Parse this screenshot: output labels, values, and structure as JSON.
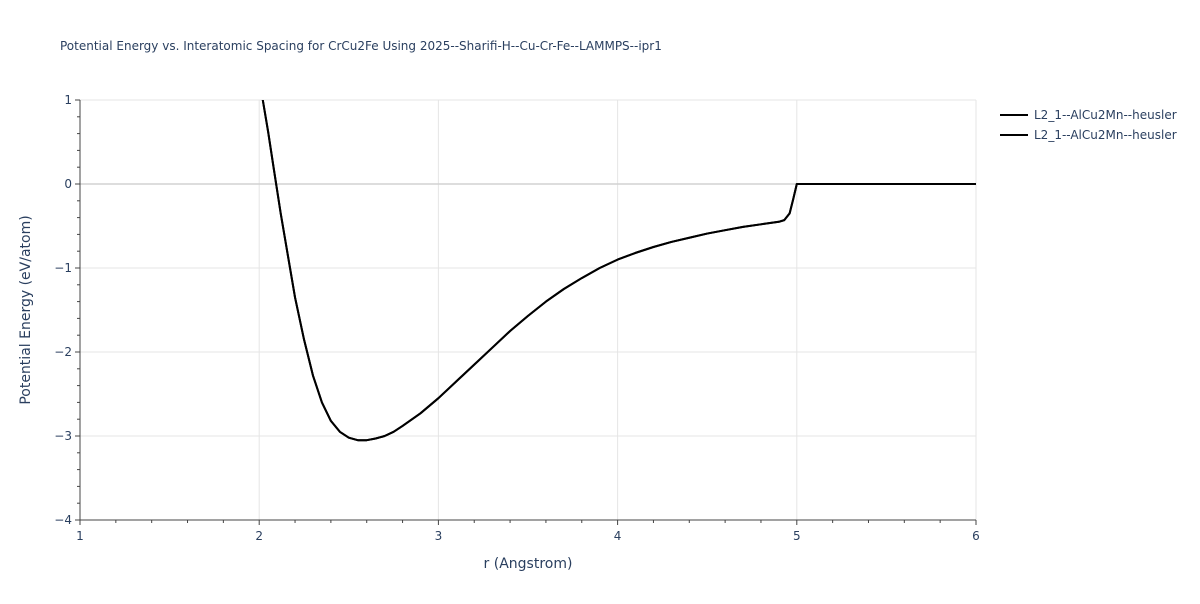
{
  "chart_data": {
    "type": "line",
    "title": "Potential Energy vs. Interatomic Spacing for CrCu2Fe Using 2025--Sharifi-H--Cu-Cr-Fe--LAMMPS--ipr1",
    "xlabel": "r (Angstrom)",
    "ylabel": "Potential Energy (eV/atom)",
    "xlim": [
      1,
      6
    ],
    "ylim": [
      -4,
      1
    ],
    "x_ticks": [
      1,
      2,
      3,
      4,
      5,
      6
    ],
    "x_tick_labels": [
      "1",
      "2",
      "3",
      "4",
      "5",
      "6"
    ],
    "y_ticks": [
      -4,
      -3,
      -2,
      -1,
      0,
      1
    ],
    "y_tick_labels": [
      "−4",
      "−3",
      "−2",
      "−1",
      "0",
      "1"
    ],
    "grid": true,
    "zero_line": true,
    "legend_position": "top-right",
    "series": [
      {
        "name": "L2_1--AlCu2Mn--heusler",
        "color": "#000000",
        "x": [
          2.02,
          2.05,
          2.08,
          2.12,
          2.16,
          2.2,
          2.25,
          2.3,
          2.35,
          2.4,
          2.45,
          2.5,
          2.55,
          2.6,
          2.65,
          2.7,
          2.75,
          2.8,
          2.9,
          3.0,
          3.1,
          3.2,
          3.3,
          3.4,
          3.5,
          3.6,
          3.7,
          3.8,
          3.9,
          4.0,
          4.1,
          4.2,
          4.3,
          4.4,
          4.5,
          4.6,
          4.7,
          4.8,
          4.9,
          4.93,
          4.96,
          4.98,
          5.0,
          5.2,
          5.5,
          6.0
        ],
        "y": [
          1.0,
          0.62,
          0.2,
          -0.35,
          -0.85,
          -1.35,
          -1.85,
          -2.28,
          -2.6,
          -2.82,
          -2.95,
          -3.02,
          -3.05,
          -3.05,
          -3.03,
          -3.0,
          -2.95,
          -2.88,
          -2.73,
          -2.55,
          -2.35,
          -2.15,
          -1.95,
          -1.75,
          -1.57,
          -1.4,
          -1.25,
          -1.12,
          -1.0,
          -0.9,
          -0.82,
          -0.75,
          -0.69,
          -0.64,
          -0.59,
          -0.55,
          -0.51,
          -0.48,
          -0.45,
          -0.43,
          -0.35,
          -0.18,
          0.0,
          0.0,
          0.0,
          0.0
        ]
      },
      {
        "name": "L2_1--AlCu2Mn--heusler",
        "color": "#000000",
        "x": [
          2.02,
          2.05,
          2.08,
          2.12,
          2.16,
          2.2,
          2.25,
          2.3,
          2.35,
          2.4,
          2.45,
          2.5,
          2.55,
          2.6,
          2.65,
          2.7,
          2.75,
          2.8,
          2.9,
          3.0,
          3.1,
          3.2,
          3.3,
          3.4,
          3.5,
          3.6,
          3.7,
          3.8,
          3.9,
          4.0,
          4.1,
          4.2,
          4.3,
          4.4,
          4.5,
          4.6,
          4.7,
          4.8,
          4.9,
          4.93,
          4.96,
          4.98,
          5.0,
          5.2,
          5.5,
          6.0
        ],
        "y": [
          1.0,
          0.62,
          0.2,
          -0.35,
          -0.85,
          -1.35,
          -1.85,
          -2.28,
          -2.6,
          -2.82,
          -2.95,
          -3.02,
          -3.05,
          -3.05,
          -3.03,
          -3.0,
          -2.95,
          -2.88,
          -2.73,
          -2.55,
          -2.35,
          -2.15,
          -1.95,
          -1.75,
          -1.57,
          -1.4,
          -1.25,
          -1.12,
          -1.0,
          -0.9,
          -0.82,
          -0.75,
          -0.69,
          -0.64,
          -0.59,
          -0.55,
          -0.51,
          -0.48,
          -0.45,
          -0.43,
          -0.35,
          -0.18,
          0.0,
          0.0,
          0.0,
          0.0
        ]
      }
    ]
  }
}
